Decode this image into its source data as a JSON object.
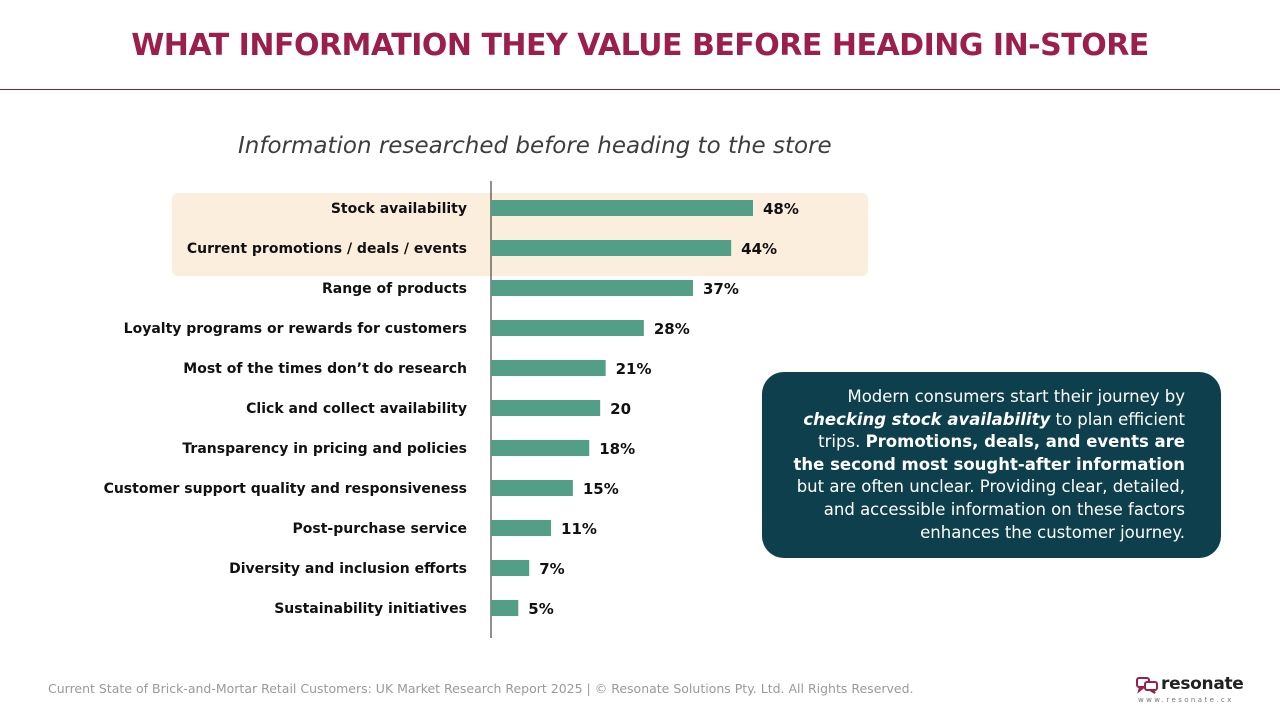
{
  "header": {
    "title": "WHAT INFORMATION THEY VALUE BEFORE HEADING IN-STORE"
  },
  "chart_data": {
    "type": "bar",
    "orientation": "horizontal",
    "title": "Information researched before heading to the store",
    "categories": [
      "Stock availability",
      "Current promotions / deals / events",
      "Range of products",
      "Loyalty programs or rewards for customers",
      "Most of the times don’t do research",
      "Click and collect availability",
      "Transparency in pricing and policies",
      "Customer support quality and responsiveness",
      "Post-purchase service",
      "Diversity and inclusion efforts",
      "Sustainability initiatives"
    ],
    "values": [
      48,
      44,
      37,
      28,
      21,
      20,
      18,
      15,
      11,
      7,
      5
    ],
    "value_labels": [
      "48%",
      "44%",
      "37%",
      "28%",
      "21%",
      "20",
      "18%",
      "15%",
      "11%",
      "7%",
      "5%"
    ],
    "highlighted_categories": [
      "Stock availability",
      "Current promotions / deals / events"
    ],
    "xlim": [
      0,
      48
    ],
    "grid": false,
    "bar_color": "#529e86",
    "highlight_color": "#fbeedd"
  },
  "callout": {
    "part1": "Modern consumers start their journey by ",
    "emph": "checking stock availability",
    "part2": " to plan efficient trips. ",
    "bold": "Promotions, deals, and events are the second most sought-after information",
    "part3": " but are often unclear. Providing clear, detailed, and accessible information on these factors enhances the customer journey."
  },
  "footer": {
    "text": "Current State of Brick-and-Mortar Retail Customers: UK Market Research Report 2025 | © Resonate Solutions Pty. Ltd. All Rights Reserved."
  },
  "logo": {
    "word": "resonate",
    "url": "www.resonate.cx",
    "icon": "speech-bubbles-icon"
  },
  "colors": {
    "title": "#9b1f4d",
    "accent": "#0d3f4c",
    "bar": "#529e86"
  }
}
